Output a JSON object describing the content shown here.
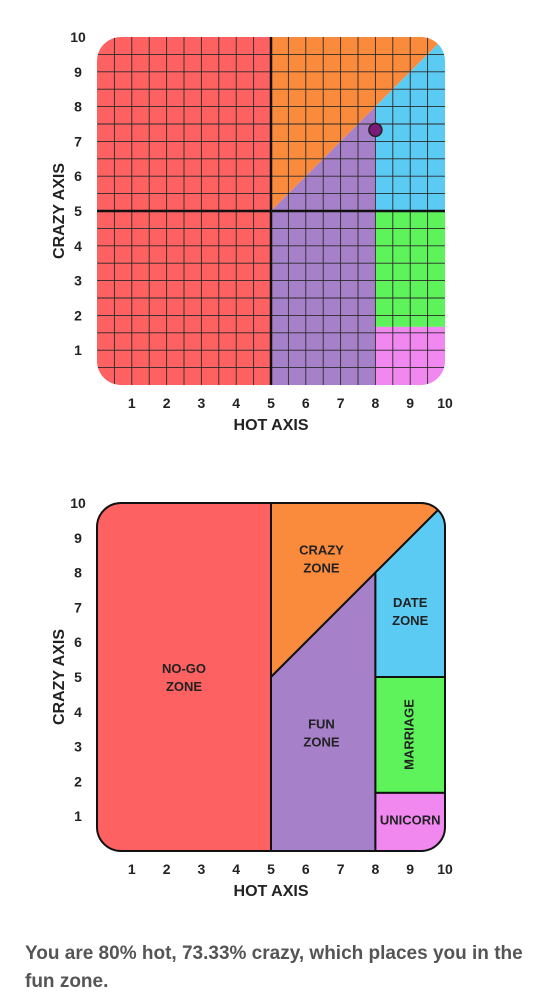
{
  "charts": [
    {
      "type": "grid",
      "xlabel": "HOT AXIS",
      "ylabel": "CRAZY AXIS",
      "xlim": [
        0,
        10
      ],
      "ylim": [
        0,
        10
      ],
      "x_ticks": [
        "1",
        "2",
        "3",
        "4",
        "5",
        "6",
        "7",
        "8",
        "9",
        "10"
      ],
      "y_ticks": [
        "1",
        "2",
        "3",
        "4",
        "5",
        "6",
        "7",
        "8",
        "9",
        "10"
      ],
      "grid": true,
      "point": {
        "x": 8,
        "y": 7.33,
        "color": "#7b1a77"
      }
    },
    {
      "type": "zones",
      "xlabel": "HOT AXIS",
      "ylabel": "CRAZY AXIS",
      "xlim": [
        0,
        10
      ],
      "ylim": [
        0,
        10
      ],
      "x_ticks": [
        "1",
        "2",
        "3",
        "4",
        "5",
        "6",
        "7",
        "8",
        "9",
        "10"
      ],
      "y_ticks": [
        "1",
        "2",
        "3",
        "4",
        "5",
        "6",
        "7",
        "8",
        "9",
        "10"
      ],
      "grid": false,
      "zone_labels": [
        {
          "text": [
            "NO-GO",
            "ZONE"
          ],
          "x": 2.5,
          "y": 5
        },
        {
          "text": [
            "CRAZY",
            "ZONE"
          ],
          "x": 6.45,
          "y": 8.4
        },
        {
          "text": [
            "DATE",
            "ZONE"
          ],
          "x": 9,
          "y": 6.9
        },
        {
          "text": [
            "FUN",
            "ZONE"
          ],
          "x": 6.45,
          "y": 3.4
        },
        {
          "text": [
            "MARRIAGE"
          ],
          "x": 9,
          "y": 3.35,
          "rotate": true
        },
        {
          "text": [
            "UNICORN"
          ],
          "x": 9,
          "y": 0.9
        }
      ]
    }
  ],
  "zones": [
    {
      "name": "no-go",
      "color": "#fd6161",
      "points": [
        [
          0,
          0
        ],
        [
          5,
          0
        ],
        [
          5,
          10
        ],
        [
          0,
          10
        ]
      ]
    },
    {
      "name": "crazy",
      "color": "#fa8a3c",
      "points": [
        [
          5,
          5
        ],
        [
          5,
          10
        ],
        [
          10,
          10
        ]
      ]
    },
    {
      "name": "fun",
      "color": "#a680c8",
      "points": [
        [
          5,
          0
        ],
        [
          8,
          0
        ],
        [
          8,
          8
        ],
        [
          5,
          5
        ]
      ]
    },
    {
      "name": "date",
      "color": "#5ccbf4",
      "points": [
        [
          8,
          5
        ],
        [
          10,
          5
        ],
        [
          10,
          10
        ],
        [
          8,
          8
        ]
      ]
    },
    {
      "name": "marriage",
      "color": "#5ef25b",
      "points": [
        [
          8,
          1.67
        ],
        [
          10,
          1.67
        ],
        [
          10,
          5
        ],
        [
          8,
          5
        ]
      ]
    },
    {
      "name": "unicorn",
      "color": "#f088f0",
      "points": [
        [
          8,
          0
        ],
        [
          10,
          0
        ],
        [
          10,
          1.67
        ],
        [
          8,
          1.67
        ]
      ]
    }
  ],
  "result_text": "You are 80% hot, 73.33% crazy, which places you in the fun zone."
}
